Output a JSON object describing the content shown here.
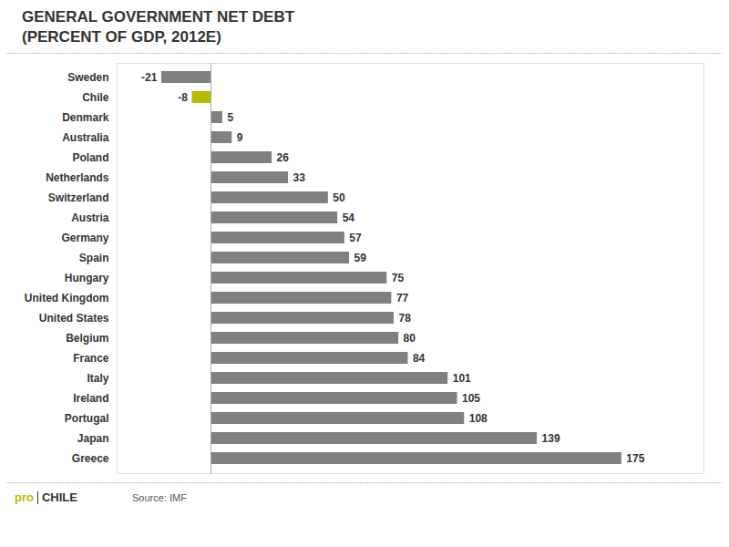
{
  "chart_data": {
    "type": "bar",
    "orientation": "horizontal",
    "title": "GENERAL GOVERNMENT NET DEBT",
    "subtitle": "(PERCENT OF GDP, 2012E)",
    "caption": "Source: IMF",
    "annotations": [
      {
        "text": "pro",
        "color": "#b5bd00"
      },
      {
        "text": "CHILE",
        "color": "#333333"
      }
    ],
    "categories": [
      "Sweden",
      "Chile",
      "Denmark",
      "Australia",
      "Poland",
      "Netherlands",
      "Switzerland",
      "Austria",
      "Germany",
      "Spain",
      "Hungary",
      "United Kingdom",
      "United States",
      "Belgium",
      "France",
      "Italy",
      "Ireland",
      "Portugal",
      "Japan",
      "Greece"
    ],
    "values": [
      -21,
      -8,
      5,
      9,
      26,
      33,
      50,
      54,
      57,
      59,
      75,
      77,
      78,
      80,
      84,
      101,
      105,
      108,
      139,
      175
    ],
    "colors": [
      "#808080",
      "#b5bd00",
      "#808080",
      "#808080",
      "#808080",
      "#808080",
      "#808080",
      "#808080",
      "#808080",
      "#808080",
      "#808080",
      "#808080",
      "#808080",
      "#808080",
      "#808080",
      "#808080",
      "#808080",
      "#808080",
      "#808080",
      "#808080"
    ],
    "xlim": [
      -40,
      210
    ],
    "data_labels": true,
    "tick_labels": "y",
    "grid": false
  }
}
